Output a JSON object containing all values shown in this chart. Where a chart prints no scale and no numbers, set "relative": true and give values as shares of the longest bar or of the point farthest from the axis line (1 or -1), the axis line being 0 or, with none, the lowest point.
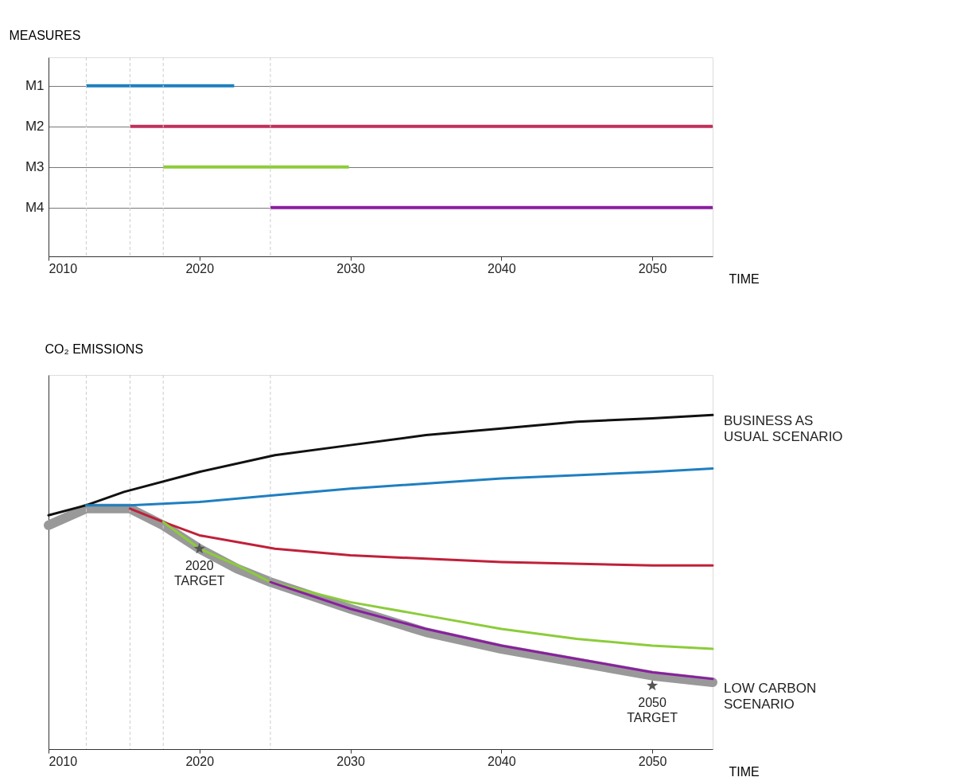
{
  "chart_data": [
    {
      "type": "bar",
      "orientation": "horizontal",
      "ylabel": "MEASURES",
      "xlabel": "TIME",
      "categories": [
        "M1",
        "M2",
        "M3",
        "M4"
      ],
      "base": [
        2012.5,
        2015.4,
        2017.6,
        2024.7
      ],
      "values": [
        9.8,
        38.6,
        12.3,
        29.3
      ],
      "colors": [
        "#1f7fc0",
        "#c0305a",
        "#8ccc3a",
        "#8a1fa0"
      ],
      "xlim": [
        2010,
        2054
      ],
      "xticks": [
        2010,
        2020,
        2030,
        2040,
        2050
      ],
      "grid": "y",
      "legend": false,
      "ref_lines": [
        {
          "axis": "x",
          "value": 2012.5,
          "color": "#cccccc",
          "line_style": "dashed"
        },
        {
          "axis": "x",
          "value": 2015.4,
          "color": "#cccccc",
          "line_style": "dashed"
        },
        {
          "axis": "x",
          "value": 2017.6,
          "color": "#cccccc",
          "line_style": "dashed"
        },
        {
          "axis": "x",
          "value": 2024.7,
          "color": "#cccccc",
          "line_style": "dashed"
        }
      ]
    },
    {
      "type": "line",
      "relative": true,
      "ylabel": "CO₂ EMISSIONS",
      "xlabel": "TIME",
      "xlim": [
        2010,
        2054
      ],
      "xticks": [
        2010,
        2020,
        2030,
        2040,
        2050
      ],
      "legend": false,
      "grid": false,
      "line_style": "solid",
      "marker": "none",
      "series": [
        {
          "name": "LOW CARBON SCENARIO",
          "color": "#999999",
          "x": [
            2010,
            2012.5,
            2014,
            2015.4,
            2017.6,
            2020,
            2022.5,
            2024.7,
            2030,
            2035,
            2040,
            2045,
            2050,
            2054
          ],
          "values": [
            0.67,
            0.72,
            0.72,
            0.72,
            0.67,
            0.6,
            0.54,
            0.5,
            0.42,
            0.35,
            0.3,
            0.26,
            0.22,
            0.2
          ]
        },
        {
          "name": "BUSINESS AS USUAL SCENARIO",
          "color": "#111111",
          "x": [
            2010,
            2012.5,
            2015,
            2020,
            2025,
            2030,
            2035,
            2040,
            2045,
            2050,
            2054
          ],
          "values": [
            0.7,
            0.73,
            0.77,
            0.83,
            0.88,
            0.91,
            0.94,
            0.96,
            0.98,
            0.99,
            1.0
          ]
        },
        {
          "color": "#1f7fc0",
          "x": [
            2012.5,
            2015.4,
            2020,
            2025,
            2030,
            2040,
            2050,
            2054
          ],
          "values": [
            0.73,
            0.73,
            0.74,
            0.76,
            0.78,
            0.81,
            0.83,
            0.84
          ]
        },
        {
          "color": "#c0203a",
          "x": [
            2015.4,
            2017.6,
            2020,
            2025,
            2030,
            2040,
            2050,
            2054
          ],
          "values": [
            0.72,
            0.68,
            0.64,
            0.6,
            0.58,
            0.56,
            0.55,
            0.55
          ]
        },
        {
          "color": "#8ccc3a",
          "x": [
            2017.6,
            2020,
            2022.5,
            2024.7,
            2030,
            2035,
            2040,
            2045,
            2050,
            2054
          ],
          "values": [
            0.68,
            0.6,
            0.55,
            0.5,
            0.44,
            0.4,
            0.36,
            0.33,
            0.31,
            0.3
          ]
        },
        {
          "color": "#8a1fa0",
          "x": [
            2024.7,
            2030,
            2035,
            2040,
            2045,
            2050,
            2054
          ],
          "values": [
            0.5,
            0.42,
            0.36,
            0.31,
            0.27,
            0.23,
            0.21
          ]
        },
        {
          "type": "scatter",
          "marker": "star",
          "color": "#555555",
          "x": [
            2020,
            2050
          ],
          "values": [
            0.6,
            0.19
          ]
        }
      ],
      "annotations": [
        {
          "text": "2020 TARGET",
          "x": 2020,
          "y": 0.6
        },
        {
          "text": "2050 TARGET",
          "x": 2050,
          "y": 0.19
        }
      ],
      "ref_lines": [
        {
          "axis": "x",
          "value": 2012.5,
          "color": "#cccccc",
          "line_style": "dashed"
        },
        {
          "axis": "x",
          "value": 2015.4,
          "color": "#cccccc",
          "line_style": "dashed"
        },
        {
          "axis": "x",
          "value": 2017.6,
          "color": "#cccccc",
          "line_style": "dashed"
        },
        {
          "axis": "x",
          "value": 2024.7,
          "color": "#cccccc",
          "line_style": "dashed"
        }
      ]
    }
  ]
}
